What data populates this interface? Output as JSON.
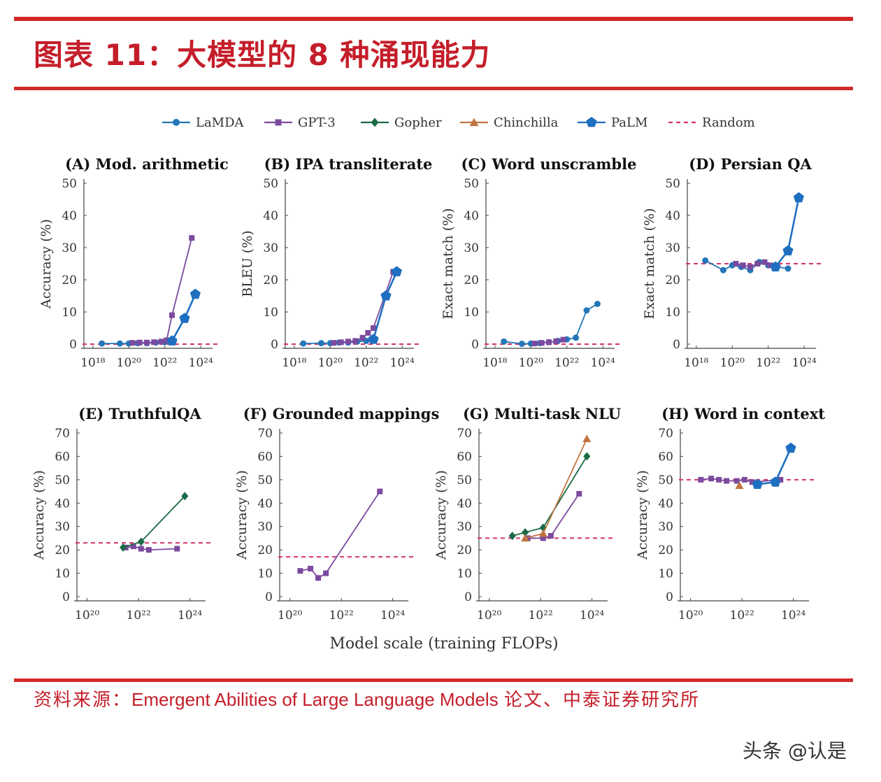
{
  "page": {
    "title": "图表 11：大模型的 8 种涌现能力",
    "source_label": "资料来源：",
    "source_text": "Emergent Abilities of Large Language Models",
    "source_suffix": "论文、中泰证券研究所",
    "watermark": "头条 @认是"
  },
  "colors": {
    "brand_red": "#c41e2a",
    "LaMDA": "#2377b8",
    "GPT-3": "#7b4a9e",
    "Gopher": "#1b6b45",
    "Chinchilla": "#c0753f",
    "PaLM": "#1f6fc0",
    "Random": "#d6336c"
  },
  "chart_data": {
    "type": "line",
    "x_axis_label": "Model scale (training FLOPs)",
    "x_scale": "log10",
    "legend": {
      "placement": "top",
      "entries": [
        {
          "name": "LaMDA",
          "marker": "circle"
        },
        {
          "name": "GPT-3",
          "marker": "square"
        },
        {
          "name": "Gopher",
          "marker": "diamond"
        },
        {
          "name": "Chinchilla",
          "marker": "triangle"
        },
        {
          "name": "PaLM",
          "marker": "pentagon"
        },
        {
          "name": "Random",
          "marker": "dashed-line"
        }
      ]
    },
    "panels": [
      {
        "id": "A",
        "title": "(A) Mod. arithmetic",
        "ylabel": "Accuracy (%)",
        "xlim": [
          17.5,
          24.5
        ],
        "ylim": [
          0,
          50
        ],
        "yticks": [
          0,
          10,
          20,
          30,
          40,
          50
        ],
        "xticks": [
          18,
          20,
          22,
          24
        ],
        "xtick_labels": [
          "10¹⁸",
          "10²⁰",
          "10²²",
          "10²⁴"
        ],
        "random": 0,
        "series": [
          {
            "name": "LaMDA",
            "x": [
              18.5,
              19.5,
              20.0,
              20.5,
              21.0,
              21.5,
              22.0,
              22.5
            ],
            "y": [
              0.2,
              0.2,
              0.2,
              0.3,
              0.3,
              0.5,
              0.6,
              1.0
            ]
          },
          {
            "name": "GPT-3",
            "x": [
              20.2,
              20.6,
              21.0,
              21.4,
              21.8,
              22.1,
              22.4,
              23.5
            ],
            "y": [
              0.4,
              0.5,
              0.5,
              0.6,
              0.8,
              1.2,
              9.0,
              33.0
            ]
          },
          {
            "name": "PaLM",
            "x": [
              22.4,
              23.1,
              23.7
            ],
            "y": [
              1.0,
              8.0,
              15.5
            ]
          }
        ]
      },
      {
        "id": "B",
        "title": "(B) IPA transliterate",
        "ylabel": "BLEU (%)",
        "xlim": [
          17.5,
          24.5
        ],
        "ylim": [
          0,
          50
        ],
        "yticks": [
          0,
          10,
          20,
          30,
          40,
          50
        ],
        "xticks": [
          18,
          20,
          22,
          24
        ],
        "xtick_labels": [
          "10¹⁸",
          "10²⁰",
          "10²²",
          "10²⁴"
        ],
        "random": 0,
        "series": [
          {
            "name": "LaMDA",
            "x": [
              18.5,
              19.5,
              20.0,
              20.5,
              21.0,
              21.5,
              22.0,
              22.5
            ],
            "y": [
              0.2,
              0.3,
              0.3,
              0.5,
              0.5,
              0.8,
              1.0,
              1.5
            ]
          },
          {
            "name": "GPT-3",
            "x": [
              20.2,
              20.6,
              21.0,
              21.4,
              21.8,
              22.1,
              22.4,
              23.5
            ],
            "y": [
              0.4,
              0.6,
              0.8,
              1.0,
              2.0,
              3.5,
              5.0,
              22.5
            ]
          },
          {
            "name": "PaLM",
            "x": [
              22.4,
              23.1,
              23.7
            ],
            "y": [
              1.5,
              15.0,
              22.5
            ]
          }
        ]
      },
      {
        "id": "C",
        "title": "(C) Word unscramble",
        "ylabel": "Exact match (%)",
        "xlim": [
          17.5,
          24.5
        ],
        "ylim": [
          0,
          50
        ],
        "yticks": [
          0,
          10,
          20,
          30,
          40,
          50
        ],
        "xticks": [
          18,
          20,
          22,
          24
        ],
        "xtick_labels": [
          "10¹⁸",
          "10²⁰",
          "10²²",
          "10²⁴"
        ],
        "random": 0,
        "series": [
          {
            "name": "LaMDA",
            "x": [
              18.5,
              19.5,
              20.0,
              20.5,
              21.0,
              21.5,
              22.0,
              22.5,
              23.1,
              23.7
            ],
            "y": [
              0.8,
              0.1,
              0.2,
              0.3,
              0.6,
              1.0,
              1.5,
              2.0,
              10.5,
              12.5
            ]
          },
          {
            "name": "GPT-3",
            "x": [
              20.2,
              20.6,
              21.0,
              21.4,
              21.8
            ],
            "y": [
              0.2,
              0.4,
              0.6,
              0.9,
              1.4
            ]
          }
        ]
      },
      {
        "id": "D",
        "title": "(D) Persian QA",
        "ylabel": "Exact match (%)",
        "xlim": [
          17.5,
          24.5
        ],
        "ylim": [
          0,
          50
        ],
        "yticks": [
          0,
          10,
          20,
          30,
          40,
          50
        ],
        "xticks": [
          18,
          20,
          22,
          24
        ],
        "xtick_labels": [
          "10¹⁸",
          "10²⁰",
          "10²²",
          "10²⁴"
        ],
        "random": 25,
        "series": [
          {
            "name": "LaMDA",
            "x": [
              18.5,
              19.5,
              20.0,
              20.5,
              21.0,
              21.5,
              22.0,
              22.5,
              23.1
            ],
            "y": [
              26.0,
              23.0,
              24.5,
              24.0,
              23.0,
              25.5,
              24.5,
              24.0,
              23.5
            ]
          },
          {
            "name": "GPT-3",
            "x": [
              20.2,
              20.6,
              21.0,
              21.4,
              21.8,
              22.1
            ],
            "y": [
              25.0,
              24.5,
              24.0,
              25.0,
              25.5,
              24.5
            ]
          },
          {
            "name": "PaLM",
            "x": [
              22.4,
              23.1,
              23.7
            ],
            "y": [
              24.0,
              29.0,
              45.5
            ]
          }
        ]
      },
      {
        "id": "E",
        "title": "(E) TruthfulQA",
        "ylabel": "Accuracy (%)",
        "xlim": [
          19.6,
          24.5
        ],
        "ylim": [
          0,
          70
        ],
        "yticks": [
          0,
          10,
          20,
          30,
          40,
          50,
          60,
          70
        ],
        "xticks": [
          20,
          22,
          24
        ],
        "xtick_labels": [
          "10²⁰",
          "10²²",
          "10²⁴"
        ],
        "random": 23,
        "series": [
          {
            "name": "GPT-3",
            "x": [
              21.5,
              21.8,
              22.1,
              22.4,
              23.5
            ],
            "y": [
              21.0,
              21.5,
              20.5,
              20.0,
              20.5
            ]
          },
          {
            "name": "Gopher",
            "x": [
              21.4,
              22.1,
              23.8
            ],
            "y": [
              21.0,
              23.5,
              43.0
            ]
          }
        ]
      },
      {
        "id": "F",
        "title": "(F) Grounded mappings",
        "ylabel": "Accuracy (%)",
        "xlim": [
          19.6,
          24.5
        ],
        "ylim": [
          0,
          70
        ],
        "yticks": [
          0,
          10,
          20,
          30,
          40,
          50,
          60,
          70
        ],
        "xticks": [
          20,
          22,
          24
        ],
        "xtick_labels": [
          "10²⁰",
          "10²²",
          "10²⁴"
        ],
        "random": 17,
        "series": [
          {
            "name": "GPT-3",
            "x": [
              20.4,
              20.8,
              21.1,
              21.4,
              23.5
            ],
            "y": [
              11.0,
              12.0,
              8.0,
              10.0,
              45.0
            ]
          }
        ]
      },
      {
        "id": "G",
        "title": "(G) Multi-task NLU",
        "ylabel": "Accuracy (%)",
        "xlim": [
          19.6,
          24.5
        ],
        "ylim": [
          0,
          70
        ],
        "yticks": [
          0,
          10,
          20,
          30,
          40,
          50,
          60,
          70
        ],
        "xticks": [
          20,
          22,
          24
        ],
        "xtick_labels": [
          "10²⁰",
          "10²²",
          "10²⁴"
        ],
        "random": 25,
        "series": [
          {
            "name": "GPT-3",
            "x": [
              21.5,
              22.1,
              22.4,
              23.5
            ],
            "y": [
              25.0,
              25.0,
              26.0,
              44.0
            ]
          },
          {
            "name": "Gopher",
            "x": [
              20.9,
              21.4,
              22.1,
              23.8
            ],
            "y": [
              26.0,
              27.5,
              29.5,
              60.0
            ]
          },
          {
            "name": "Chinchilla",
            "x": [
              21.4,
              22.1,
              23.8
            ],
            "y": [
              25.0,
              27.0,
              67.5
            ]
          }
        ]
      },
      {
        "id": "H",
        "title": "(H) Word in context",
        "ylabel": "Accuracy (%)",
        "xlim": [
          19.6,
          24.5
        ],
        "ylim": [
          0,
          70
        ],
        "yticks": [
          0,
          10,
          20,
          30,
          40,
          50,
          60,
          70
        ],
        "xticks": [
          20,
          22,
          24
        ],
        "xtick_labels": [
          "10²⁰",
          "10²²",
          "10²⁴"
        ],
        "random": 50,
        "series": [
          {
            "name": "GPT-3",
            "x": [
              20.4,
              20.8,
              21.1,
              21.4,
              21.8,
              22.1,
              22.4,
              23.5
            ],
            "y": [
              50.0,
              50.5,
              50.0,
              49.5,
              49.5,
              50.0,
              49.0,
              50.0
            ]
          },
          {
            "name": "Chinchilla",
            "x": [
              21.9
            ],
            "y": [
              47.5
            ]
          },
          {
            "name": "PaLM",
            "x": [
              22.6,
              23.3,
              23.9
            ],
            "y": [
              48.0,
              49.0,
              63.5
            ]
          }
        ]
      }
    ]
  }
}
